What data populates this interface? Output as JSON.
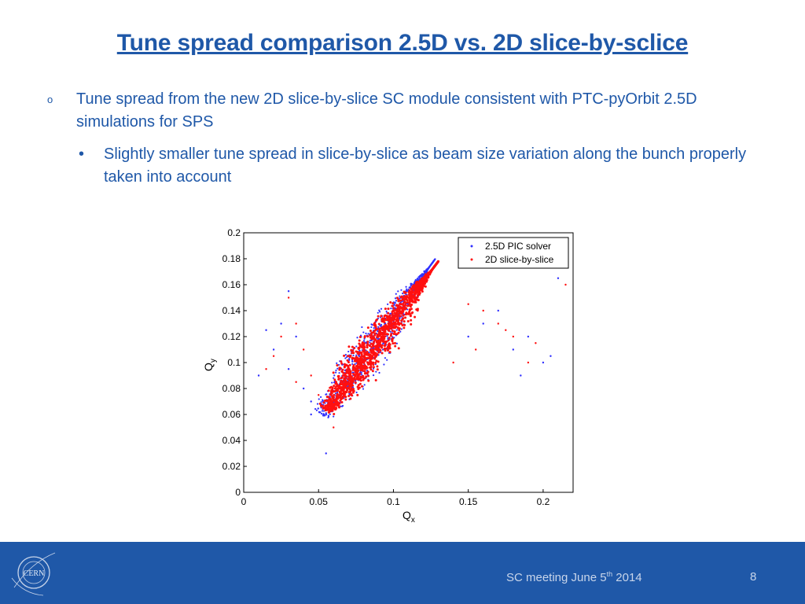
{
  "slide": {
    "title": "Tune spread comparison 2.5D vs. 2D slice-by-sclice",
    "bullet1_marker": "o",
    "bullet1": "Tune spread from the new 2D slice-by-slice SC module consistent with PTC-pyOrbit 2.5D simulations for SPS",
    "bullet2_marker": "•",
    "bullet2": "Slightly smaller tune spread in slice-by-slice as beam size variation along the bunch properly taken into account"
  },
  "footer": {
    "meeting_text": "SC meeting June 5",
    "meeting_sup": "th",
    "meeting_year": " 2014",
    "page_number": "8",
    "logo_text": "CERN",
    "bg_color": "#1f58a8"
  },
  "chart_data": {
    "type": "scatter",
    "xlabel": "Q",
    "xlabel_sub": "x",
    "ylabel": "Q",
    "ylabel_sub": "y",
    "xlim": [
      0,
      0.22
    ],
    "ylim": [
      0,
      0.2
    ],
    "xticks": [
      "0",
      "0.05",
      "0.1",
      "0.15",
      "0.2"
    ],
    "yticks": [
      "0",
      "0.02",
      "0.04",
      "0.06",
      "0.08",
      "0.1",
      "0.12",
      "0.14",
      "0.16",
      "0.18",
      "0.2"
    ],
    "legend_position": "top-right",
    "series": [
      {
        "name": "2.5D PIC solver",
        "color": "#3030ff",
        "core": {
          "x_from": 0.052,
          "y_from": 0.06,
          "x_to": 0.128,
          "y_to": 0.18,
          "width_q": 0.026
        },
        "outliers": [
          [
            0.01,
            0.09
          ],
          [
            0.02,
            0.11
          ],
          [
            0.025,
            0.13
          ],
          [
            0.03,
            0.155
          ],
          [
            0.035,
            0.12
          ],
          [
            0.04,
            0.08
          ],
          [
            0.045,
            0.07
          ],
          [
            0.18,
            0.11
          ],
          [
            0.19,
            0.12
          ],
          [
            0.2,
            0.1
          ],
          [
            0.21,
            0.165
          ],
          [
            0.205,
            0.105
          ],
          [
            0.16,
            0.13
          ],
          [
            0.17,
            0.14
          ],
          [
            0.055,
            0.03
          ],
          [
            0.015,
            0.125
          ],
          [
            0.03,
            0.095
          ],
          [
            0.045,
            0.06
          ],
          [
            0.15,
            0.12
          ],
          [
            0.185,
            0.09
          ]
        ]
      },
      {
        "name": "2D slice-by-slice",
        "color": "#ff1010",
        "core": {
          "x_from": 0.055,
          "y_from": 0.063,
          "x_to": 0.13,
          "y_to": 0.178,
          "width_q": 0.024
        },
        "outliers": [
          [
            0.015,
            0.095
          ],
          [
            0.02,
            0.105
          ],
          [
            0.03,
            0.15
          ],
          [
            0.035,
            0.13
          ],
          [
            0.04,
            0.11
          ],
          [
            0.05,
            0.075
          ],
          [
            0.175,
            0.125
          ],
          [
            0.195,
            0.115
          ],
          [
            0.17,
            0.13
          ],
          [
            0.16,
            0.14
          ],
          [
            0.215,
            0.16
          ],
          [
            0.155,
            0.11
          ],
          [
            0.045,
            0.09
          ],
          [
            0.025,
            0.12
          ],
          [
            0.14,
            0.1
          ],
          [
            0.19,
            0.1
          ],
          [
            0.06,
            0.05
          ],
          [
            0.15,
            0.145
          ],
          [
            0.035,
            0.085
          ],
          [
            0.18,
            0.12
          ]
        ]
      }
    ]
  }
}
